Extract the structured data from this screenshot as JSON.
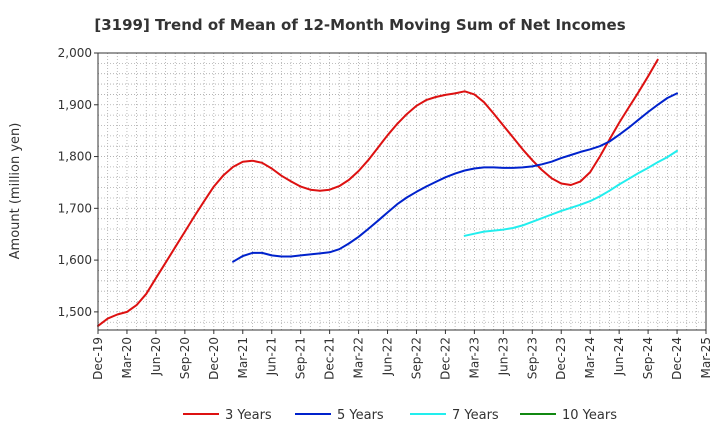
{
  "chart_data": {
    "type": "line",
    "title": "[3199]  Trend of Mean of 12-Month Moving Sum of Net Incomes",
    "xlabel": "",
    "ylabel": "Amount (million yen)",
    "ylim": [
      1465,
      2000
    ],
    "yticks": [
      1500,
      1600,
      1700,
      1800,
      1900,
      2000
    ],
    "ytick_labels": [
      "1,500",
      "1,600",
      "1,700",
      "1,800",
      "1,900",
      "2,000"
    ],
    "xticks": [
      "Dec-19",
      "Mar-20",
      "Jun-20",
      "Sep-20",
      "Dec-20",
      "Mar-21",
      "Jun-21",
      "Sep-21",
      "Dec-21",
      "Mar-22",
      "Jun-22",
      "Sep-22",
      "Dec-22",
      "Mar-23",
      "Jun-23",
      "Sep-23",
      "Dec-23",
      "Mar-24",
      "Jun-24",
      "Sep-24",
      "Dec-24",
      "Mar-25"
    ],
    "grid": true,
    "legend_position": "bottom",
    "series": [
      {
        "name": "3 Years",
        "color": "#dd1111",
        "start": "Dec-19",
        "values": [
          1473,
          1487,
          1495,
          1500,
          1513,
          1535,
          1565,
          1595,
          1625,
          1655,
          1685,
          1714,
          1742,
          1764,
          1780,
          1790,
          1792,
          1788,
          1777,
          1763,
          1752,
          1742,
          1736,
          1734,
          1736,
          1743,
          1755,
          1772,
          1793,
          1817,
          1841,
          1863,
          1882,
          1898,
          1909,
          1915,
          1919,
          1922,
          1926,
          1920,
          1905,
          1883,
          1860,
          1837,
          1814,
          1793,
          1774,
          1758,
          1748,
          1745,
          1752,
          1770,
          1800,
          1833,
          1865,
          1895,
          1924,
          1955,
          1987
        ]
      },
      {
        "name": "5 Years",
        "color": "#0022cc",
        "start": "Feb-21",
        "values": [
          1597,
          1608,
          1614,
          1614,
          1609,
          1607,
          1607,
          1609,
          1611,
          1613,
          1615,
          1621,
          1632,
          1645,
          1660,
          1676,
          1692,
          1708,
          1721,
          1732,
          1742,
          1751,
          1760,
          1767,
          1773,
          1777,
          1779,
          1779,
          1778,
          1778,
          1779,
          1781,
          1785,
          1790,
          1797,
          1803,
          1809,
          1814,
          1820,
          1829,
          1842,
          1856,
          1871,
          1886,
          1900,
          1913,
          1922
        ]
      },
      {
        "name": "7 Years",
        "color": "#22eeee",
        "start": "Feb-23",
        "values": [
          1647,
          1651,
          1655,
          1657,
          1659,
          1662,
          1667,
          1674,
          1681,
          1688,
          1695,
          1701,
          1707,
          1714,
          1723,
          1734,
          1746,
          1757,
          1768,
          1778,
          1789,
          1799,
          1811
        ]
      },
      {
        "name": "10 Years",
        "color": "#118811",
        "start": "",
        "values": []
      }
    ]
  }
}
